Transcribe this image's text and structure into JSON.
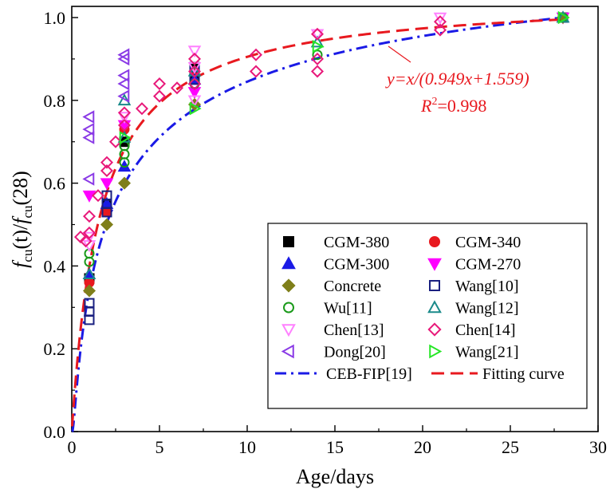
{
  "chart_data": {
    "type": "scatter",
    "xlabel": "Age/days",
    "ylabel": "fcu(t)/fcu(28)",
    "ylabel_parts": {
      "f1": "f",
      "sub1": "cu",
      "mid": "(t)/",
      "f2": "f",
      "sub2": "cu",
      "tail": "(28)"
    },
    "xlim": [
      0,
      30
    ],
    "ylim": [
      0,
      1.03
    ],
    "xticks": [
      "0",
      "5",
      "10",
      "15",
      "20",
      "25",
      "30"
    ],
    "yticks": [
      "0.0",
      "0.2",
      "0.4",
      "0.6",
      "0.8",
      "1.0"
    ],
    "annotation": {
      "equation": "y=x/(0.949x+1.559)",
      "r2": "R2=0.998",
      "r2_parts": {
        "r": "R",
        "sup": "2",
        "val": "=0.998"
      }
    },
    "colors": {
      "black": "#000000",
      "red": "#e8191f",
      "blue": "#1a1ae6",
      "magenta": "#ff00ff",
      "olive": "#7f7f1a",
      "navy": "#1a2080",
      "green": "#1a9a1a",
      "teal": "#1a8a8a",
      "violet": "#ff80ff",
      "pink": "#e8197a",
      "purple": "#8a3ae6",
      "lime": "#26e626"
    },
    "series": [
      {
        "name": "CGM-380",
        "marker": "square",
        "filled": true,
        "color": "#000000",
        "points": [
          [
            1,
            0.37
          ],
          [
            2,
            0.55
          ],
          [
            3,
            0.7
          ],
          [
            7,
            0.86
          ],
          [
            7,
            0.88
          ],
          [
            28,
            1.0
          ]
        ]
      },
      {
        "name": "CGM-340",
        "marker": "circle",
        "filled": true,
        "color": "#e8191f",
        "points": [
          [
            1,
            0.36
          ],
          [
            2,
            0.53
          ],
          [
            3,
            0.73
          ],
          [
            7,
            0.87
          ],
          [
            28,
            1.0
          ]
        ]
      },
      {
        "name": "CGM-300",
        "marker": "triangle-up",
        "filled": true,
        "color": "#1a1ae6",
        "points": [
          [
            1,
            0.38
          ],
          [
            2,
            0.55
          ],
          [
            3,
            0.64
          ],
          [
            7,
            0.85
          ],
          [
            28,
            1.0
          ]
        ]
      },
      {
        "name": "CGM-270",
        "marker": "triangle-down",
        "filled": true,
        "color": "#ff00ff",
        "points": [
          [
            1,
            0.57
          ],
          [
            2,
            0.6
          ],
          [
            3,
            0.74
          ],
          [
            7,
            0.82
          ],
          [
            28,
            1.0
          ]
        ]
      },
      {
        "name": "Concrete",
        "marker": "diamond",
        "filled": true,
        "color": "#7f7f1a",
        "points": [
          [
            1,
            0.34
          ],
          [
            2,
            0.5
          ],
          [
            3,
            0.6
          ],
          [
            7,
            0.79
          ],
          [
            28,
            1.0
          ]
        ]
      },
      {
        "name": "Wang[10]",
        "marker": "square",
        "filled": false,
        "color": "#1a2080",
        "points": [
          [
            1,
            0.27
          ],
          [
            1,
            0.29
          ],
          [
            1,
            0.31
          ],
          [
            2,
            0.53
          ],
          [
            2,
            0.55
          ],
          [
            2,
            0.57
          ],
          [
            7,
            0.85
          ],
          [
            7,
            0.88
          ]
        ]
      },
      {
        "name": "Wu[11]",
        "marker": "circle",
        "filled": false,
        "color": "#1a9a1a",
        "points": [
          [
            1,
            0.41
          ],
          [
            1,
            0.43
          ],
          [
            3,
            0.65
          ],
          [
            3,
            0.67
          ],
          [
            3,
            0.69
          ],
          [
            7,
            0.84
          ],
          [
            14,
            0.91
          ],
          [
            28,
            1.0
          ]
        ]
      },
      {
        "name": "Wang[12]",
        "marker": "triangle-up",
        "filled": false,
        "color": "#1a8a8a",
        "points": [
          [
            1,
            0.38
          ],
          [
            3,
            0.71
          ],
          [
            3,
            0.8
          ],
          [
            7,
            0.87
          ],
          [
            14,
            0.94
          ],
          [
            28,
            1.0
          ]
        ]
      },
      {
        "name": "Chen[13]",
        "marker": "triangle-down",
        "filled": false,
        "color": "#ff80ff",
        "points": [
          [
            1,
            0.45
          ],
          [
            1,
            0.47
          ],
          [
            3,
            0.76
          ],
          [
            7,
            0.8
          ],
          [
            7,
            0.88
          ],
          [
            7,
            0.92
          ],
          [
            14,
            0.96
          ],
          [
            21,
            1.0
          ]
        ]
      },
      {
        "name": "Chen[14]",
        "marker": "diamond",
        "filled": false,
        "color": "#e8197a",
        "points": [
          [
            0.5,
            0.47
          ],
          [
            0.8,
            0.46
          ],
          [
            1,
            0.48
          ],
          [
            1,
            0.52
          ],
          [
            1.5,
            0.57
          ],
          [
            2,
            0.63
          ],
          [
            2,
            0.65
          ],
          [
            2.5,
            0.7
          ],
          [
            3,
            0.74
          ],
          [
            3,
            0.77
          ],
          [
            4,
            0.78
          ],
          [
            5,
            0.81
          ],
          [
            5,
            0.84
          ],
          [
            6,
            0.83
          ],
          [
            7,
            0.84
          ],
          [
            7,
            0.87
          ],
          [
            7,
            0.9
          ],
          [
            10.5,
            0.87
          ],
          [
            10.5,
            0.91
          ],
          [
            14,
            0.87
          ],
          [
            14,
            0.9
          ],
          [
            14,
            0.96
          ],
          [
            21,
            0.97
          ],
          [
            21,
            0.99
          ]
        ]
      },
      {
        "name": "Dong[20]",
        "marker": "triangle-left",
        "filled": false,
        "color": "#8a3ae6",
        "points": [
          [
            1,
            0.61
          ],
          [
            1,
            0.71
          ],
          [
            1,
            0.73
          ],
          [
            1,
            0.76
          ],
          [
            3,
            0.81
          ],
          [
            3,
            0.84
          ],
          [
            3,
            0.86
          ],
          [
            3,
            0.9
          ],
          [
            3,
            0.91
          ]
        ]
      },
      {
        "name": "Wang[21]",
        "marker": "triangle-right",
        "filled": false,
        "color": "#26e626",
        "points": [
          [
            3,
            0.71
          ],
          [
            7,
            0.78
          ],
          [
            14,
            0.93
          ],
          [
            28,
            1.0
          ]
        ]
      }
    ],
    "curves": [
      {
        "name": "CEB-FIP[19]",
        "style": "dash-dot",
        "color": "#1a1ae6",
        "kind": "cebfip",
        "s": 0.25
      },
      {
        "name": "Fitting curve",
        "style": "dash",
        "color": "#e8191f",
        "kind": "fit",
        "a": 0.949,
        "b": 1.559
      }
    ]
  }
}
